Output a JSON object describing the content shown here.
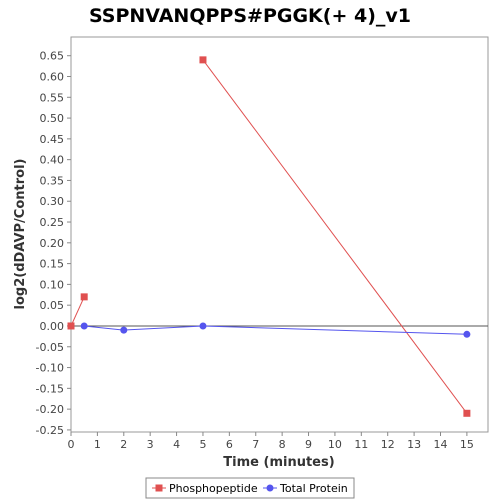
{
  "chart_data": {
    "type": "line",
    "title": "SSPNVANQPPS#PGGK(+ 4)_v1",
    "xlabel": "Time (minutes)",
    "ylabel": "log2(dDAVP/Control)",
    "xlim": [
      0,
      15.8
    ],
    "ylim": [
      -0.255,
      0.695
    ],
    "x_ticks": [
      0,
      1,
      2,
      3,
      4,
      5,
      6,
      7,
      8,
      9,
      10,
      11,
      12,
      13,
      14,
      15
    ],
    "y_ticks": [
      -0.25,
      -0.2,
      -0.15,
      -0.1,
      -0.05,
      0.0,
      0.05,
      0.1,
      0.15,
      0.2,
      0.25,
      0.3,
      0.35,
      0.4,
      0.45,
      0.5,
      0.55,
      0.6,
      0.65
    ],
    "y_tick_labels": [
      "-0.25",
      "-0.20",
      "-0.15",
      "-0.10",
      "-0.05",
      "0.00",
      "0.05",
      "0.10",
      "0.15",
      "0.20",
      "0.25",
      "0.30",
      "0.35",
      "0.40",
      "0.45",
      "0.50",
      "0.55",
      "0.60",
      "0.65"
    ],
    "zero_line": true,
    "grid": false,
    "legend_position": "bottom",
    "series": [
      {
        "name": "Phosphopeptide",
        "color": "#e05050",
        "marker": "square",
        "segments": [
          [
            [
              0,
              0.0
            ],
            [
              0.5,
              0.07
            ]
          ],
          [
            [
              5,
              0.64
            ],
            [
              15,
              -0.21
            ]
          ]
        ]
      },
      {
        "name": "Total Protein",
        "color": "#5555ee",
        "marker": "circle",
        "segments": [
          [
            [
              0.5,
              0.0
            ],
            [
              2,
              -0.01
            ],
            [
              5,
              0.0
            ],
            [
              15,
              -0.02
            ]
          ]
        ]
      }
    ]
  }
}
